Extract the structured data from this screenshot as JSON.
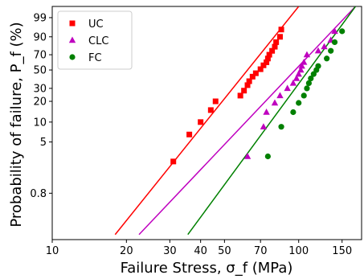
{
  "chart_data": {
    "type": "scatter",
    "xlabel": "Failure Stress, σ_f (MPa)",
    "ylabel": "Probability of failure, P_f (%)",
    "x_scale": "log",
    "y_scale": "weibull",
    "xlim": [
      10,
      180
    ],
    "ylim": [
      0.15,
      99.9
    ],
    "x_ticks": [
      {
        "value": 10,
        "label": "10"
      },
      {
        "value": 20,
        "label": "20"
      },
      {
        "value": 30,
        "label": "30"
      },
      {
        "value": 40,
        "label": "40"
      },
      {
        "value": 50,
        "label": "50"
      },
      {
        "value": 70,
        "label": "70"
      },
      {
        "value": 100,
        "label": "100"
      },
      {
        "value": 150,
        "label": "150"
      }
    ],
    "y_ticks": [
      {
        "value": 99,
        "label": "99"
      },
      {
        "value": 90,
        "label": "90"
      },
      {
        "value": 70,
        "label": "70"
      },
      {
        "value": 50,
        "label": "50"
      },
      {
        "value": 30,
        "label": "30"
      },
      {
        "value": 20,
        "label": "20"
      },
      {
        "value": 10,
        "label": "10"
      },
      {
        "value": 5,
        "label": "5"
      },
      {
        "value": 0.8,
        "label": "0.8"
      }
    ],
    "legend_position": "top-left",
    "series": [
      {
        "name": "UC",
        "color": "#ff0000",
        "marker": "square",
        "fit_x": [
          18,
          100
        ],
        "fit_y": [
          0.18,
          99.9
        ],
        "x": [
          31,
          36,
          40,
          44,
          46,
          58,
          60,
          62,
          63,
          65,
          67,
          70,
          72,
          74,
          75,
          76,
          78,
          80,
          81,
          84,
          85
        ],
        "y": [
          2.5,
          6.5,
          10,
          15,
          20,
          24,
          28,
          33,
          37,
          42,
          46,
          51,
          56,
          60,
          65,
          70,
          75,
          80,
          85,
          90,
          95
        ]
      },
      {
        "name": "CLC",
        "color": "#bf00bf",
        "marker": "triangle",
        "fit_x": [
          22.5,
          170
        ],
        "fit_y": [
          0.18,
          99.9
        ],
        "x": [
          62,
          72,
          74,
          80,
          84,
          90,
          95,
          98,
          100,
          102,
          103,
          105,
          108,
          120,
          127,
          135,
          140
        ],
        "y": [
          3,
          8.5,
          14,
          19,
          24,
          30,
          35,
          40,
          45,
          50,
          55,
          60,
          70,
          75,
          80,
          87,
          94
        ]
      },
      {
        "name": "FC",
        "color": "#008000",
        "marker": "circle",
        "fit_x": [
          35.5,
          170
        ],
        "fit_y": [
          0.18,
          99.9
        ],
        "x": [
          75,
          85,
          95,
          100,
          105,
          108,
          110,
          112,
          115,
          118,
          120,
          130,
          135,
          140,
          150
        ],
        "y": [
          3,
          8.5,
          14,
          19,
          24,
          30,
          35,
          40,
          45,
          50,
          55,
          65,
          75,
          85,
          94
        ]
      }
    ]
  }
}
